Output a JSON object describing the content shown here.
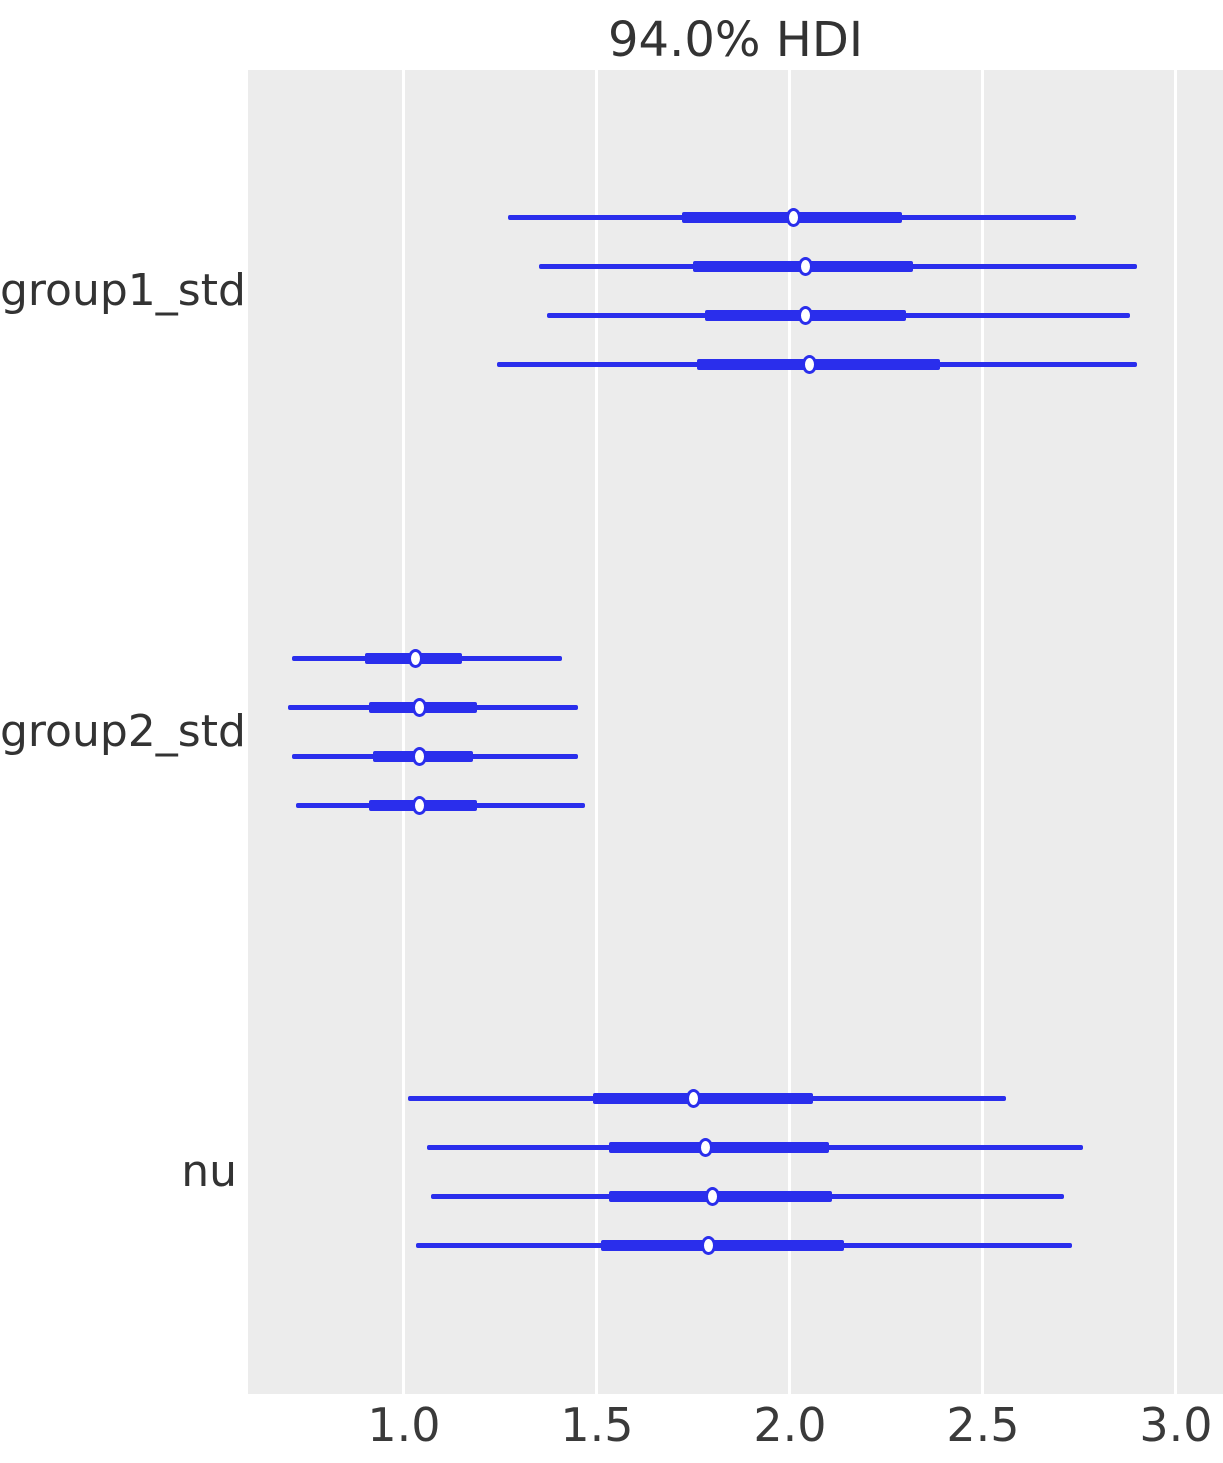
{
  "chart_data": {
    "type": "forest",
    "title": "94.0% HDI",
    "xlabel": "",
    "ylabel": "",
    "x_ticks": [
      {
        "value": 1.0,
        "label": "1.0"
      },
      {
        "value": 1.5,
        "label": "1.5"
      },
      {
        "value": 2.0,
        "label": "2.0"
      },
      {
        "value": 2.5,
        "label": "2.5"
      },
      {
        "value": 3.0,
        "label": "3.0"
      }
    ],
    "xlim": [
      0.596,
      3.122
    ],
    "grid": "vertical white gridlines on gray panel",
    "legend_position": "none",
    "hdi_probability": "94.0%",
    "parameters": [
      {
        "name": "group1_std",
        "chains": [
          {
            "hdi_lo": 1.27,
            "hdi_hi": 2.74,
            "q_lo": 1.72,
            "q_hi": 2.29,
            "median": 2.01
          },
          {
            "hdi_lo": 1.35,
            "hdi_hi": 2.9,
            "q_lo": 1.75,
            "q_hi": 2.32,
            "median": 2.04
          },
          {
            "hdi_lo": 1.37,
            "hdi_hi": 2.88,
            "q_lo": 1.78,
            "q_hi": 2.3,
            "median": 2.04
          },
          {
            "hdi_lo": 1.24,
            "hdi_hi": 2.9,
            "q_lo": 1.76,
            "q_hi": 2.39,
            "median": 2.05
          }
        ]
      },
      {
        "name": "group2_std",
        "chains": [
          {
            "hdi_lo": 0.71,
            "hdi_hi": 1.41,
            "q_lo": 0.9,
            "q_hi": 1.15,
            "median": 1.03
          },
          {
            "hdi_lo": 0.7,
            "hdi_hi": 1.45,
            "q_lo": 0.91,
            "q_hi": 1.19,
            "median": 1.04
          },
          {
            "hdi_lo": 0.71,
            "hdi_hi": 1.45,
            "q_lo": 0.92,
            "q_hi": 1.18,
            "median": 1.04
          },
          {
            "hdi_lo": 0.72,
            "hdi_hi": 1.47,
            "q_lo": 0.91,
            "q_hi": 1.19,
            "median": 1.04
          }
        ]
      },
      {
        "name": "nu",
        "chains": [
          {
            "hdi_lo": 1.01,
            "hdi_hi": 2.56,
            "q_lo": 1.49,
            "q_hi": 2.06,
            "median": 1.75
          },
          {
            "hdi_lo": 1.06,
            "hdi_hi": 2.76,
            "q_lo": 1.53,
            "q_hi": 2.1,
            "median": 1.78
          },
          {
            "hdi_lo": 1.07,
            "hdi_hi": 2.71,
            "q_lo": 1.53,
            "q_hi": 2.11,
            "median": 1.8
          },
          {
            "hdi_lo": 1.03,
            "hdi_hi": 2.73,
            "q_lo": 1.51,
            "q_hi": 2.14,
            "median": 1.79
          }
        ]
      }
    ],
    "colors": {
      "interval": "#2a2eec",
      "plot_background": "#ececec",
      "gridline": "#ffffff",
      "text": "#333333",
      "figure_background": "#ffffff"
    }
  }
}
